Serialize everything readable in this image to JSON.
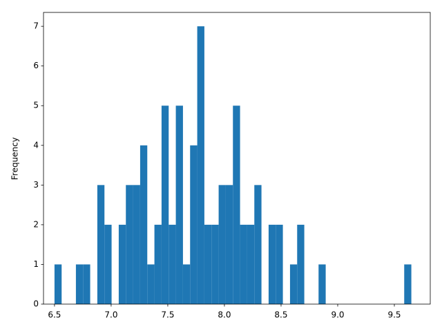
{
  "chart_data": {
    "type": "histogram",
    "ylabel": "Frequency",
    "color": "#1f77b4",
    "bins": [
      6.5,
      6.563,
      6.626,
      6.689,
      6.752,
      6.815,
      6.878,
      6.941,
      7.004,
      7.067,
      7.13,
      7.193,
      7.256,
      7.319,
      7.382,
      7.445,
      7.508,
      7.571,
      7.634,
      7.697,
      7.76,
      7.823,
      7.886,
      7.949,
      8.012,
      8.075,
      8.138,
      8.201,
      8.264,
      8.327,
      8.39,
      8.453,
      8.516,
      8.579,
      8.642,
      8.705,
      8.768,
      8.831,
      8.894,
      8.957,
      9.02,
      9.083,
      9.146,
      9.209,
      9.272,
      9.335,
      9.398,
      9.461,
      9.524,
      9.587,
      9.65
    ],
    "values": [
      1,
      0,
      0,
      1,
      1,
      0,
      3,
      2,
      0,
      2,
      3,
      3,
      4,
      1,
      2,
      5,
      2,
      5,
      1,
      4,
      7,
      2,
      2,
      3,
      3,
      5,
      2,
      2,
      3,
      0,
      2,
      2,
      0,
      1,
      2,
      0,
      0,
      1,
      0,
      0,
      0,
      0,
      0,
      0,
      0,
      0,
      0,
      0,
      0,
      1
    ],
    "xlim": [
      6.403,
      9.817
    ],
    "ylim": [
      0,
      7.35
    ],
    "xticks": [
      6.5,
      {
        "value": 7,
        "label": "7.0"
      },
      7.5,
      {
        "value": 8,
        "label": "8.0"
      },
      8.5,
      {
        "value": 9,
        "label": "9.0"
      },
      9.5
    ],
    "yticks": [
      0,
      1,
      2,
      3,
      4,
      5,
      6,
      7
    ]
  }
}
